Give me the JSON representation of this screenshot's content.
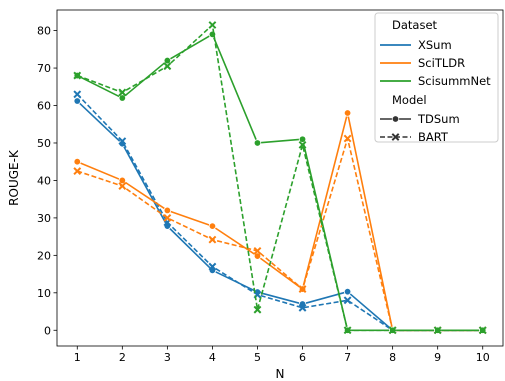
{
  "chart_data": {
    "type": "line",
    "xlabel": "N",
    "ylabel": "ROUGE-K",
    "xlim": [
      0.55,
      10.45
    ],
    "ylim": [
      -4.2,
      85.5
    ],
    "x_ticks": [
      1,
      2,
      3,
      4,
      5,
      6,
      7,
      8,
      9,
      10
    ],
    "y_ticks": [
      0,
      10,
      20,
      30,
      40,
      50,
      60,
      70,
      80
    ],
    "grid": false,
    "legend_position": "top-right",
    "legend": {
      "hue_title": "Dataset",
      "style_title": "Model",
      "datasets": [
        {
          "name": "XSum",
          "color": "#1f77b4"
        },
        {
          "name": "SciTLDR",
          "color": "#ff7f0e"
        },
        {
          "name": "ScisummNet",
          "color": "#2ca02c"
        }
      ],
      "models": [
        {
          "name": "TDSum",
          "marker": "circle",
          "dash": "solid"
        },
        {
          "name": "BART",
          "marker": "x",
          "dash": "dashed"
        }
      ]
    },
    "series": [
      {
        "dataset": "XSum",
        "model": "TDSum",
        "color": "#1f77b4",
        "x": [
          1,
          2,
          3,
          4,
          5,
          6,
          7,
          8,
          9,
          10
        ],
        "y": [
          61.2,
          49.8,
          27.8,
          16.0,
          10.2,
          7.0,
          10.3,
          0,
          0,
          0
        ]
      },
      {
        "dataset": "XSum",
        "model": "BART",
        "color": "#1f77b4",
        "x": [
          1,
          2,
          3,
          4,
          5,
          6,
          7,
          8,
          9,
          10
        ],
        "y": [
          63.0,
          50.5,
          28.8,
          17.0,
          9.5,
          6.0,
          8.0,
          0,
          0,
          0
        ]
      },
      {
        "dataset": "SciTLDR",
        "model": "TDSum",
        "color": "#ff7f0e",
        "x": [
          1,
          2,
          3,
          4,
          5,
          6,
          7,
          8,
          9,
          10
        ],
        "y": [
          45.0,
          40.0,
          32.0,
          27.8,
          19.8,
          11.0,
          58.0,
          0,
          0,
          0
        ]
      },
      {
        "dataset": "SciTLDR",
        "model": "BART",
        "color": "#ff7f0e",
        "x": [
          1,
          2,
          3,
          4,
          5,
          6,
          7,
          8,
          9,
          10
        ],
        "y": [
          42.5,
          38.5,
          30.0,
          24.2,
          21.2,
          11.0,
          51.2,
          0,
          0,
          0
        ]
      },
      {
        "dataset": "ScisummNet",
        "model": "TDSum",
        "color": "#2ca02c",
        "x": [
          1,
          2,
          3,
          4,
          5,
          6,
          7,
          8,
          9,
          10
        ],
        "y": [
          68.0,
          62.0,
          72.0,
          79.0,
          50.0,
          51.0,
          0,
          0,
          0,
          0
        ]
      },
      {
        "dataset": "ScisummNet",
        "model": "BART",
        "color": "#2ca02c",
        "x": [
          1,
          2,
          3,
          4,
          5,
          6,
          7,
          8,
          9,
          10
        ],
        "y": [
          68.0,
          63.5,
          70.5,
          81.5,
          5.5,
          49.5,
          0,
          0,
          0,
          0
        ]
      }
    ]
  }
}
